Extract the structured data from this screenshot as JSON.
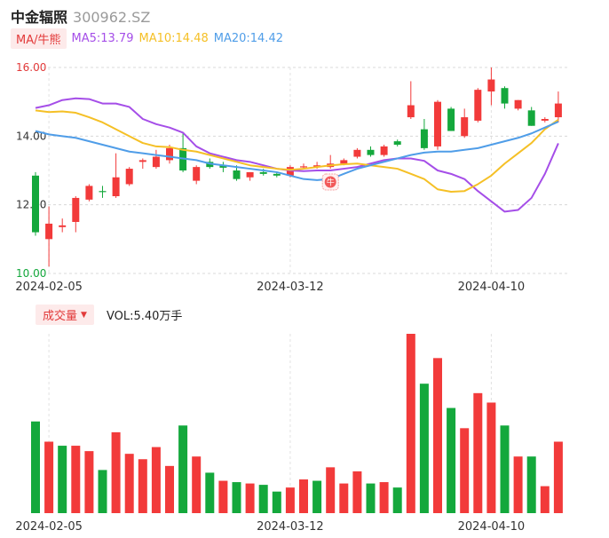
{
  "header": {
    "name": "中金辐照",
    "code": "300962.SZ"
  },
  "ma": {
    "toggle": "MA/牛熊",
    "ma5": "MA5:13.79",
    "ma10": "MA10:14.48",
    "ma20": "MA20:14.42",
    "colors": {
      "ma5": "#a54ee8",
      "ma10": "#f5c026",
      "ma20": "#4f9de8"
    }
  },
  "volume_panel": {
    "toggle": "成交量",
    "vol_text": "VOL:5.40万手"
  },
  "colors": {
    "up": "#f23a3a",
    "down": "#14a83c",
    "tick_red": "#e23a3a",
    "axis_text": "#333333"
  },
  "badge": "牛",
  "chart_data": [
    {
      "type": "candlestick",
      "y_ticks": [
        "16.00",
        "14.00",
        "12.00",
        "10.00"
      ],
      "ylim": [
        10,
        16
      ],
      "x_tick_labels": [
        {
          "index": 1,
          "label": "2024-02-05"
        },
        {
          "index": 19,
          "label": "2024-03-12"
        },
        {
          "index": 34,
          "label": "2024-04-10"
        }
      ],
      "candles": [
        {
          "o": 12.85,
          "h": 12.95,
          "l": 11.1,
          "c": 11.2
        },
        {
          "o": 11.0,
          "h": 11.95,
          "l": 10.2,
          "c": 11.45
        },
        {
          "o": 11.35,
          "h": 11.6,
          "l": 11.2,
          "c": 11.4
        },
        {
          "o": 11.5,
          "h": 12.25,
          "l": 11.2,
          "c": 12.2
        },
        {
          "o": 12.15,
          "h": 12.6,
          "l": 12.1,
          "c": 12.55
        },
        {
          "o": 12.4,
          "h": 12.55,
          "l": 12.2,
          "c": 12.38
        },
        {
          "o": 12.25,
          "h": 13.5,
          "l": 12.2,
          "c": 12.8
        },
        {
          "o": 12.6,
          "h": 13.1,
          "l": 12.55,
          "c": 13.05
        },
        {
          "o": 13.25,
          "h": 13.35,
          "l": 13.05,
          "c": 13.3
        },
        {
          "o": 13.1,
          "h": 13.6,
          "l": 13.05,
          "c": 13.4
        },
        {
          "o": 13.3,
          "h": 13.75,
          "l": 13.2,
          "c": 13.65
        },
        {
          "o": 13.65,
          "h": 14.1,
          "l": 12.95,
          "c": 13.0
        },
        {
          "o": 12.7,
          "h": 13.15,
          "l": 12.6,
          "c": 13.1
        },
        {
          "o": 13.25,
          "h": 13.35,
          "l": 13.05,
          "c": 13.1
        },
        {
          "o": 13.15,
          "h": 13.25,
          "l": 12.95,
          "c": 13.08
        },
        {
          "o": 13.0,
          "h": 13.15,
          "l": 12.7,
          "c": 12.75
        },
        {
          "o": 12.8,
          "h": 12.95,
          "l": 12.7,
          "c": 12.95
        },
        {
          "o": 12.95,
          "h": 13.05,
          "l": 12.85,
          "c": 12.9
        },
        {
          "o": 12.9,
          "h": 12.95,
          "l": 12.8,
          "c": 12.85
        },
        {
          "o": 12.85,
          "h": 13.15,
          "l": 12.8,
          "c": 13.1
        },
        {
          "o": 13.1,
          "h": 13.2,
          "l": 13.05,
          "c": 13.12
        },
        {
          "o": 13.1,
          "h": 13.25,
          "l": 13.05,
          "c": 13.15
        },
        {
          "o": 13.1,
          "h": 13.45,
          "l": 13.05,
          "c": 13.2
        },
        {
          "o": 13.2,
          "h": 13.35,
          "l": 13.15,
          "c": 13.3
        },
        {
          "o": 13.4,
          "h": 13.65,
          "l": 13.35,
          "c": 13.6
        },
        {
          "o": 13.6,
          "h": 13.7,
          "l": 13.4,
          "c": 13.45
        },
        {
          "o": 13.45,
          "h": 13.75,
          "l": 13.4,
          "c": 13.7
        },
        {
          "o": 13.85,
          "h": 13.9,
          "l": 13.7,
          "c": 13.75
        },
        {
          "o": 14.55,
          "h": 15.6,
          "l": 14.5,
          "c": 14.9
        },
        {
          "o": 14.2,
          "h": 14.5,
          "l": 13.6,
          "c": 13.65
        },
        {
          "o": 13.7,
          "h": 15.05,
          "l": 13.6,
          "c": 15.0
        },
        {
          "o": 14.8,
          "h": 14.85,
          "l": 14.15,
          "c": 14.15
        },
        {
          "o": 14.0,
          "h": 14.8,
          "l": 13.95,
          "c": 14.55
        },
        {
          "o": 14.45,
          "h": 15.4,
          "l": 14.4,
          "c": 15.35
        },
        {
          "o": 15.3,
          "h": 16.0,
          "l": 14.9,
          "c": 15.65
        },
        {
          "o": 15.4,
          "h": 15.45,
          "l": 14.8,
          "c": 14.95
        },
        {
          "o": 14.8,
          "h": 15.05,
          "l": 14.75,
          "c": 15.05
        },
        {
          "o": 14.75,
          "h": 14.85,
          "l": 14.3,
          "c": 14.3
        },
        {
          "o": 14.45,
          "h": 14.55,
          "l": 14.4,
          "c": 14.5
        },
        {
          "o": 14.55,
          "h": 15.3,
          "l": 14.4,
          "c": 14.95
        }
      ],
      "series": [
        {
          "name": "MA5",
          "values": [
            14.82,
            14.9,
            15.05,
            15.1,
            15.08,
            14.95,
            14.95,
            14.85,
            14.5,
            14.35,
            14.25,
            14.1,
            13.7,
            13.5,
            13.4,
            13.3,
            13.25,
            13.15,
            13.05,
            13.0,
            12.98,
            13.0,
            13.0,
            13.05,
            13.1,
            13.2,
            13.3,
            13.35,
            13.35,
            13.28,
            13.0,
            12.9,
            12.75,
            12.4,
            12.1,
            11.8,
            11.85,
            12.2,
            12.9,
            13.79
          ]
        },
        {
          "name": "MA10",
          "values": [
            14.75,
            14.7,
            14.72,
            14.68,
            14.55,
            14.4,
            14.2,
            14.0,
            13.8,
            13.7,
            13.68,
            13.6,
            13.55,
            13.45,
            13.35,
            13.25,
            13.15,
            13.1,
            13.05,
            13.02,
            13.05,
            13.1,
            13.15,
            13.18,
            13.2,
            13.15,
            13.1,
            13.05,
            12.9,
            12.75,
            12.45,
            12.38,
            12.4,
            12.6,
            12.85,
            13.2,
            13.5,
            13.8,
            14.2,
            14.48
          ]
        },
        {
          "name": "MA20",
          "values": [
            14.15,
            14.05,
            14.0,
            13.95,
            13.85,
            13.75,
            13.65,
            13.55,
            13.5,
            13.45,
            13.4,
            13.35,
            13.3,
            13.2,
            13.15,
            13.1,
            13.05,
            13.0,
            12.95,
            12.85,
            12.75,
            12.72,
            12.75,
            12.9,
            13.05,
            13.15,
            13.25,
            13.35,
            13.45,
            13.52,
            13.55,
            13.55,
            13.6,
            13.65,
            13.75,
            13.85,
            13.95,
            14.08,
            14.25,
            14.42
          ]
        }
      ]
    },
    {
      "type": "bar",
      "title": "成交量",
      "x_tick_labels": [
        {
          "index": 1,
          "label": "2024-02-05"
        },
        {
          "index": 19,
          "label": "2024-03-12"
        },
        {
          "index": 34,
          "label": "2024-04-10"
        }
      ],
      "values": [
        68,
        53,
        50,
        50,
        46,
        32,
        60,
        44,
        40,
        49,
        35,
        65,
        42,
        30,
        24,
        23,
        22,
        21,
        16,
        19,
        25,
        24,
        34,
        22,
        31,
        22,
        23,
        19,
        133,
        96,
        115,
        78,
        63,
        89,
        82,
        65,
        42,
        42,
        20,
        53
      ],
      "direction": [
        "down",
        "up",
        "down",
        "up",
        "up",
        "down",
        "up",
        "up",
        "up",
        "up",
        "up",
        "down",
        "up",
        "down",
        "up",
        "down",
        "up",
        "down",
        "down",
        "up",
        "up",
        "down",
        "up",
        "up",
        "up",
        "down",
        "up",
        "down",
        "up",
        "down",
        "up",
        "down",
        "up",
        "up",
        "up",
        "down",
        "up",
        "down",
        "up",
        "up"
      ]
    }
  ]
}
